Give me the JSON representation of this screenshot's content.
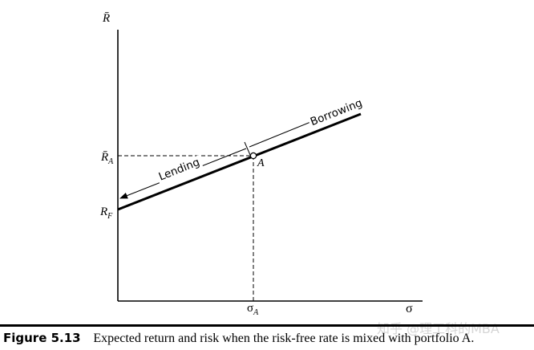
{
  "diagram": {
    "y_axis_label": "R̄",
    "x_axis_label": "σ",
    "tick_rf": "R",
    "tick_rf_sub": "F",
    "tick_ra": "R̄",
    "tick_ra_sub": "A",
    "tick_sigma_a": "σ",
    "tick_sigma_a_sub": "A",
    "point_label": "A",
    "lending_label": "Lending",
    "borrowing_label": "Borrowing"
  },
  "caption": {
    "figure_number": "Figure 5.13",
    "text": "Expected return and risk when the risk-free rate is mixed with portfolio A."
  },
  "watermark": "知乎 @理工科的MBA"
}
